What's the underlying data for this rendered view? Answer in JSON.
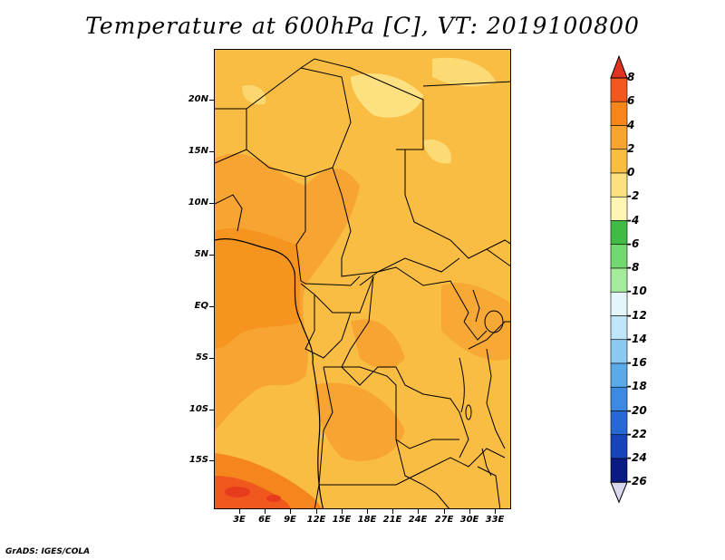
{
  "title": "Temperature at 600hPa [C], VT: 2019100800",
  "footer": "GrADS: IGES/COLA",
  "map": {
    "lat_labels": [
      "20N",
      "15N",
      "10N",
      "5N",
      "EQ",
      "5S",
      "10S",
      "15S"
    ],
    "lon_labels": [
      "3E",
      "6E",
      "9E",
      "12E",
      "15E",
      "18E",
      "21E",
      "24E",
      "27E",
      "30E",
      "33E"
    ],
    "extent": {
      "lon_min": 0,
      "lon_max": 35,
      "lat_min": -20,
      "lat_max": 25
    }
  },
  "colorbar": {
    "labels": [
      "8",
      "6",
      "4",
      "2",
      "0",
      "-2",
      "-4",
      "-6",
      "-8",
      "-10",
      "-12",
      "-14",
      "-16",
      "-18",
      "-20",
      "-22",
      "-24",
      "-26"
    ],
    "colors": [
      "#e83a1c",
      "#f0581e",
      "#f5861e",
      "#f7a432",
      "#f9bd44",
      "#fde181",
      "#fef6b2",
      "#3fbb46",
      "#74d870",
      "#a5eb9c",
      "#e5f6fa",
      "#bfe6f8",
      "#8cc9f1",
      "#5aaaea",
      "#3c8ae2",
      "#2868d5",
      "#1744b8",
      "#0b1b84"
    ],
    "top_color": "#e03221",
    "bottom_color": "#d8d8f0"
  }
}
